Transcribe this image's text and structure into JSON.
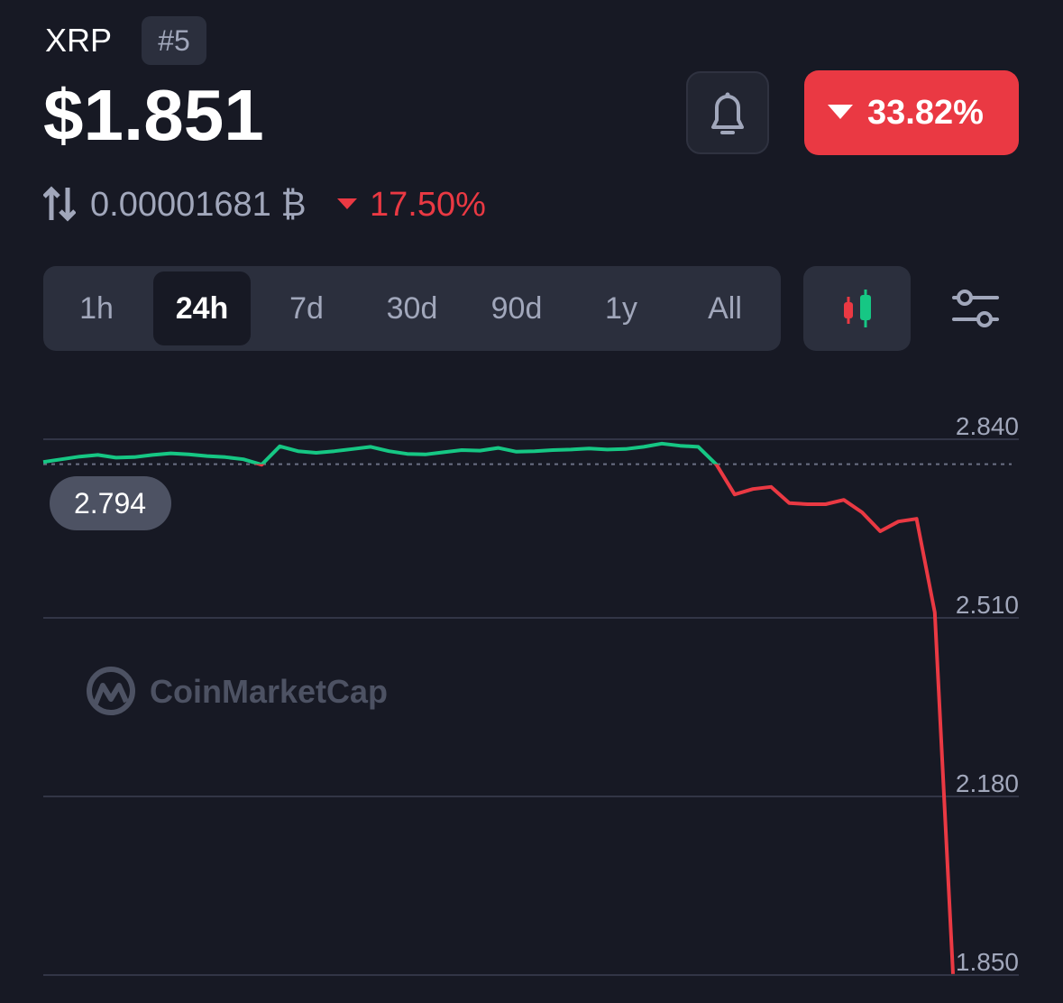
{
  "header": {
    "ticker": "XRP",
    "rank": "#5",
    "price": "$1.851",
    "change_24h": "33.82%",
    "btc_price": "0.00001681 ₿",
    "btc_change": "17.50%"
  },
  "ranges": {
    "tabs": [
      "1h",
      "24h",
      "7d",
      "30d",
      "90d",
      "1y",
      "All"
    ],
    "selected": "24h"
  },
  "watermark": "CoinMarketCap",
  "chart_data": {
    "type": "line",
    "reference_price": 2.794,
    "up_color": "#16c784",
    "down_color": "#ea3943",
    "ylim": [
      1.85,
      2.84
    ],
    "yticks": [
      {
        "value": 2.84,
        "label": "2.840"
      },
      {
        "value": 2.51,
        "label": "2.510"
      },
      {
        "value": 2.18,
        "label": "2.180"
      },
      {
        "value": 1.85,
        "label": "1.850"
      }
    ],
    "grid": true,
    "values": [
      2.798,
      2.803,
      2.808,
      2.811,
      2.806,
      2.807,
      2.811,
      2.814,
      2.812,
      2.809,
      2.807,
      2.803,
      2.793,
      2.827,
      2.818,
      2.815,
      2.818,
      2.822,
      2.826,
      2.818,
      2.813,
      2.812,
      2.816,
      2.82,
      2.819,
      2.824,
      2.817,
      2.818,
      2.82,
      2.821,
      2.823,
      2.821,
      2.822,
      2.826,
      2.832,
      2.828,
      2.826,
      2.793,
      2.738,
      2.748,
      2.752,
      2.722,
      2.72,
      2.72,
      2.728,
      2.705,
      2.67,
      2.688,
      2.693,
      2.52,
      1.852
    ]
  }
}
